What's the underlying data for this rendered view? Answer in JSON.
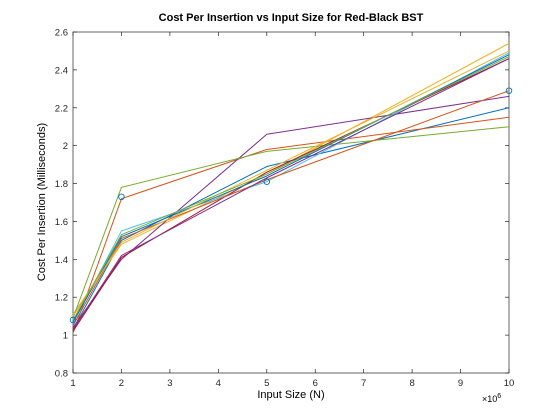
{
  "chart_data": {
    "type": "line",
    "title": "Cost Per Insertion vs Input Size for Red-Black BST",
    "xlabel": "Input Size (N)",
    "ylabel": "Cost Per Insertion (Milliseconds)",
    "x_multiplier": "×10",
    "x_multiplier_exponent": "6",
    "xlim": [
      1,
      10
    ],
    "ylim": [
      0.8,
      2.6
    ],
    "xticks": [
      "1",
      "2",
      "3",
      "4",
      "5",
      "6",
      "7",
      "8",
      "9",
      "10"
    ],
    "yticks": [
      "0.8",
      "1",
      "1.2",
      "1.4",
      "1.6",
      "1.8",
      "2",
      "2.2",
      "2.4",
      "2.6"
    ],
    "grid": false,
    "x": [
      1,
      2,
      5,
      10
    ],
    "series": [
      {
        "color": "#0072BD",
        "values": [
          1.03,
          1.5,
          1.89,
          2.2
        ]
      },
      {
        "color": "#D95319",
        "values": [
          1.01,
          1.72,
          1.98,
          2.15
        ]
      },
      {
        "color": "#EDB120",
        "values": [
          1.11,
          1.48,
          1.85,
          2.54
        ]
      },
      {
        "color": "#7E2F8E",
        "values": [
          1.04,
          1.4,
          2.06,
          2.26
        ]
      },
      {
        "color": "#77AC30",
        "values": [
          1.09,
          1.78,
          1.97,
          2.1
        ]
      },
      {
        "color": "#4DBEEE",
        "values": [
          1.06,
          1.55,
          1.81,
          2.49
        ]
      },
      {
        "color": "#A2142F",
        "values": [
          1.02,
          1.41,
          1.86,
          2.46
        ]
      },
      {
        "color": "#0072BD",
        "values": [
          1.07,
          1.52,
          1.84,
          2.48
        ]
      },
      {
        "color": "#D95319",
        "values": [
          1.05,
          1.51,
          1.82,
          2.29
        ]
      },
      {
        "color": "#EDB120",
        "values": [
          1.1,
          1.49,
          1.87,
          2.5
        ]
      },
      {
        "color": "#7E2F8E",
        "values": [
          1.03,
          1.42,
          1.83,
          2.46
        ]
      },
      {
        "color": "#77AC30",
        "values": [
          1.08,
          1.53,
          1.85,
          2.47
        ]
      }
    ],
    "markers": [
      {
        "x": 1,
        "y": 1.08
      },
      {
        "x": 2,
        "y": 1.73
      },
      {
        "x": 5,
        "y": 1.81
      },
      {
        "x": 10,
        "y": 2.29
      }
    ],
    "marker_color": "#0072BD"
  }
}
